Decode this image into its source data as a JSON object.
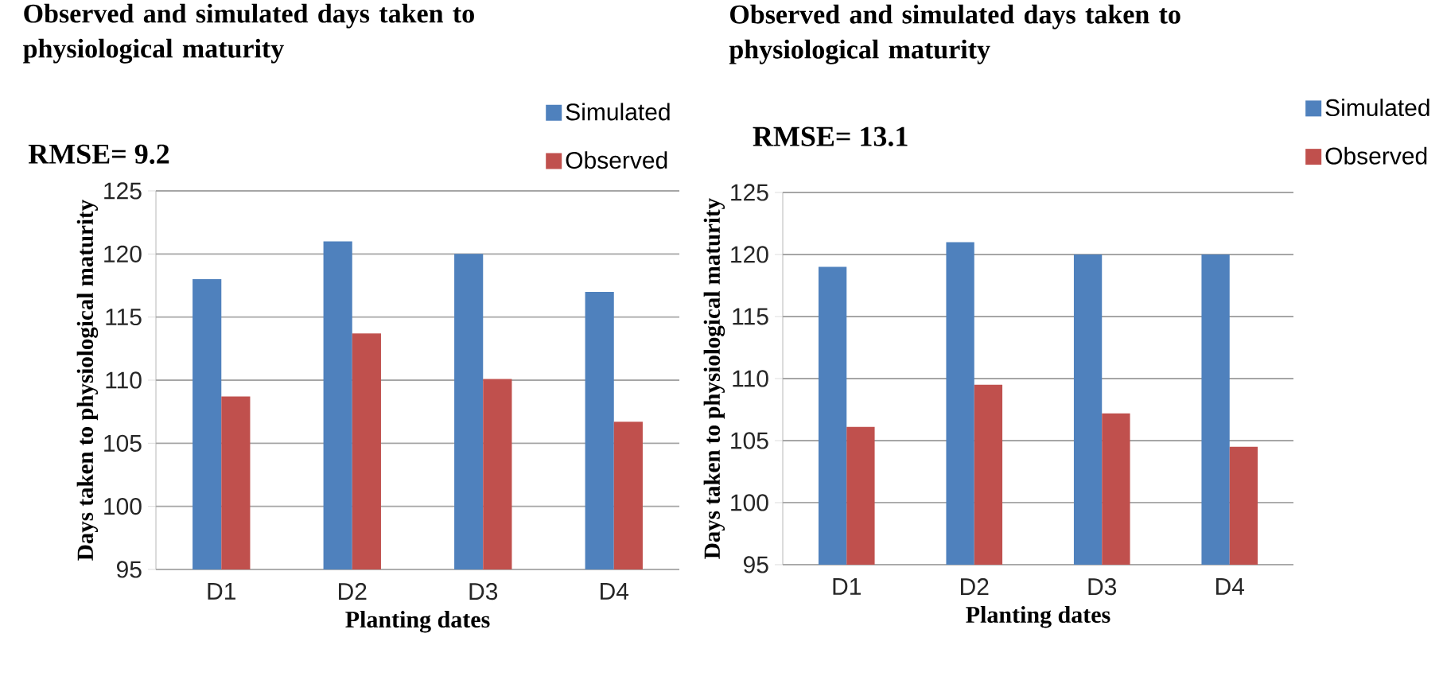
{
  "chart_data": [
    {
      "type": "bar",
      "title": "Observed and simulated days taken to physiological maturity",
      "xlabel": "Planting dates",
      "ylabel": "Days taken to physiological maturity",
      "categories": [
        "D1",
        "D2",
        "D3",
        "D4"
      ],
      "series": [
        {
          "name": "Simulated",
          "color": "#4f81bd",
          "values": [
            118,
            121,
            120,
            117
          ]
        },
        {
          "name": "Observed",
          "color": "#c0504d",
          "values": [
            108.7,
            113.7,
            110.1,
            106.7
          ]
        }
      ],
      "ylim": [
        95,
        125
      ],
      "yticks": [
        95,
        100,
        105,
        110,
        115,
        120,
        125
      ],
      "grid": "y",
      "legend": "top right",
      "annotations": [
        "RMSE= 9.2"
      ]
    },
    {
      "type": "bar",
      "title": "Observed and simulated days taken to physiological maturity",
      "xlabel": "Planting dates",
      "ylabel": "Days taken to physiological maturity",
      "categories": [
        "D1",
        "D2",
        "D3",
        "D4"
      ],
      "series": [
        {
          "name": "Simulated",
          "color": "#4f81bd",
          "values": [
            119,
            121,
            120,
            120
          ]
        },
        {
          "name": "Observed",
          "color": "#c0504d",
          "values": [
            106.1,
            109.5,
            107.2,
            104.5
          ]
        }
      ],
      "ylim": [
        95,
        125
      ],
      "yticks": [
        95,
        100,
        105,
        110,
        115,
        120,
        125
      ],
      "grid": "y",
      "legend": "top right",
      "annotations": [
        "RMSE= 13.1"
      ]
    }
  ]
}
